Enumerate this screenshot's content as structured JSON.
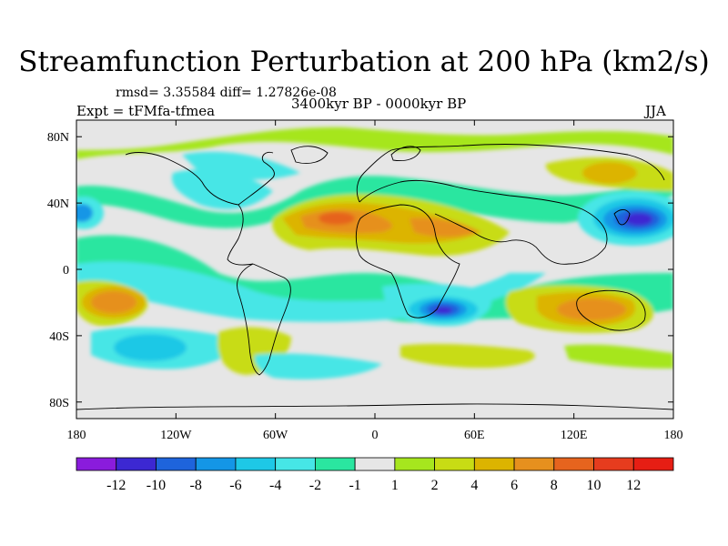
{
  "title": "Streamfunction Perturbation at 200 hPa (km2/s)",
  "stats": "rmsd= 3.35584 diff= 1.27826e-08",
  "experiment": "Expt = tFMfa-tfmea",
  "period": "3400kyr BP - 0000kyr BP",
  "season": "JJA",
  "chart_data": {
    "type": "contour-map",
    "variable": "Streamfunction Perturbation at 200 hPa",
    "units": "km2/s",
    "x_ticks": [
      "180",
      "120W",
      "60W",
      "0",
      "60E",
      "120E",
      "180"
    ],
    "x_tick_values": [
      -180,
      -120,
      -60,
      0,
      60,
      120,
      180
    ],
    "y_ticks": [
      "80N",
      "40N",
      "0",
      "40S",
      "80S"
    ],
    "y_tick_values": [
      80,
      40,
      0,
      -40,
      -80
    ],
    "xlim": [
      -180,
      180
    ],
    "ylim": [
      -90,
      90
    ],
    "colorbar_labels": [
      "-12",
      "-10",
      "-8",
      "-6",
      "-4",
      "-2",
      "-1",
      "1",
      "2",
      "4",
      "6",
      "8",
      "10",
      "12"
    ],
    "colorbar_colors": [
      "#8a1cdc",
      "#3c28d2",
      "#1e64dc",
      "#1496e6",
      "#1ec8e6",
      "#46e6e6",
      "#2ae6a0",
      "#e6e6e6",
      "#a6e61e",
      "#c8dc14",
      "#dcb400",
      "#e6901e",
      "#e6641e",
      "#e63c1e",
      "#e61e14"
    ],
    "features": [
      {
        "label": "low",
        "lon": 157,
        "lat": 27,
        "value": -11
      },
      {
        "label": "low",
        "lon": 42,
        "lat": -25,
        "value": -12
      },
      {
        "label": "low",
        "lon": -170,
        "lat": 32,
        "value": -6
      },
      {
        "label": "high",
        "lon": -15,
        "lat": 30,
        "value": 8
      },
      {
        "label": "high",
        "lon": -165,
        "lat": -23,
        "value": 7
      },
      {
        "label": "high",
        "lon": 140,
        "lat": -25,
        "value": 8
      },
      {
        "label": "high",
        "lon": 140,
        "lat": 55,
        "value": 4
      }
    ]
  }
}
